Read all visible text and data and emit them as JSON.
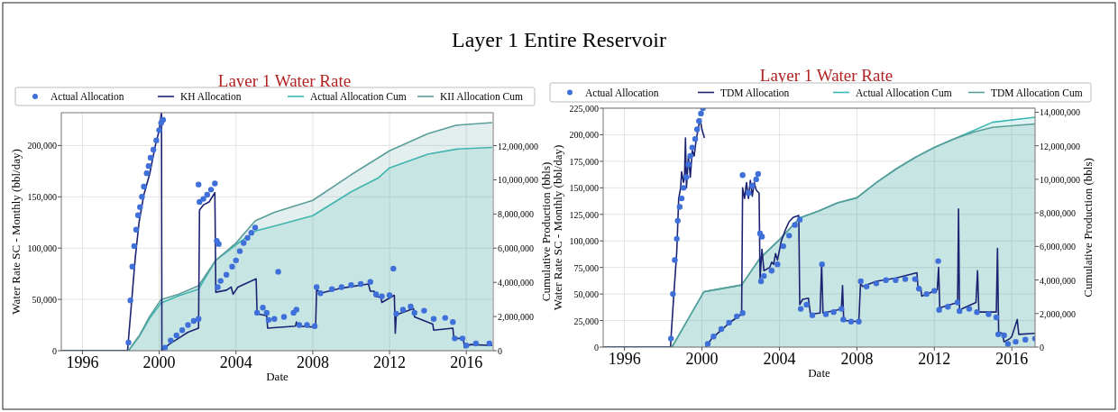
{
  "chart_data": [
    {
      "type": "line",
      "title": "Layer 1 Water Rate",
      "annotations": [
        "Layer 1 Entire Reservoir"
      ],
      "xlabel": "Date",
      "ylabel": "Water Rate SC - Monthly (bbl/day)",
      "y2label": "Cumulative Production (bbls)",
      "xlim": [
        1994.9,
        2017.4
      ],
      "xticks": [
        1996,
        2000,
        2004,
        2008,
        2012,
        2016
      ],
      "ylim": [
        0,
        232000
      ],
      "yticks": [
        0,
        {
          "value": 50000,
          "label": "50,000"
        },
        {
          "value": 100000,
          "label": "100,000"
        },
        {
          "value": 150000,
          "label": "150,000"
        },
        {
          "value": 200000,
          "label": "200,000"
        }
      ],
      "y2lim": [
        0,
        13930000
      ],
      "y2ticks": [
        0,
        {
          "value": 2000000,
          "label": "2,000,000"
        },
        {
          "value": 4000000,
          "label": "4,000,000"
        },
        {
          "value": 6000000,
          "label": "6,000,000"
        },
        {
          "value": 8000000,
          "label": "8,000,000"
        },
        {
          "value": 10000000,
          "label": "10,000,000"
        },
        {
          "value": 12000000,
          "label": "12,000,000"
        }
      ],
      "grid": true,
      "legend": "top",
      "series": [
        {
          "name": "Actual Allocation Cum",
          "type": "area",
          "axis": "y2",
          "color": "#3bb8b4",
          "x": [
            1994.9,
            1998.4,
            1999,
            1999.5,
            2000.1,
            2001,
            2002.05,
            2002.95,
            2004,
            2005,
            2006,
            2008,
            2010,
            2011.4,
            2012,
            2014,
            2015.5,
            2017.35
          ],
          "values": [
            0,
            0,
            900000,
            1900000,
            2800000,
            3200000,
            3600000,
            5300000,
            6200000,
            7000000,
            7300000,
            7900000,
            9300000,
            10100000,
            10700000,
            11500000,
            11800000,
            11900000
          ]
        },
        {
          "name": "KII Allocation Cum",
          "type": "area",
          "axis": "y2",
          "color": "#5a9e9a",
          "x": [
            1994.9,
            1998.4,
            1999,
            1999.5,
            2000.1,
            2001,
            2002.05,
            2002.95,
            2004,
            2005,
            2006,
            2008,
            2010,
            2012,
            2014,
            2015.5,
            2017.35
          ],
          "values": [
            0,
            0,
            950000,
            2000000,
            3000000,
            3300000,
            3800000,
            5300000,
            6300000,
            7600000,
            8100000,
            8800000,
            10300000,
            11700000,
            12700000,
            13200000,
            13350000
          ]
        },
        {
          "name": "KH Allocation",
          "type": "line",
          "color": "#1b2372",
          "x": [
            1994.9,
            1998.35,
            1998.55,
            1998.75,
            1998.95,
            1999.2,
            1999.5,
            1999.8,
            2000.0,
            2000.12,
            2000.14,
            2000.5,
            2001,
            2001.5,
            2002.05,
            2002.1,
            2002.3,
            2002.6,
            2002.9,
            2002.95,
            2003.5,
            2003.75,
            2003.85,
            2004.1,
            2005.05,
            2005.1,
            2005.6,
            2005.65,
            2007.1,
            2007.15,
            2007.2,
            2008.15,
            2008.2,
            2008.4,
            2009.5,
            2010.9,
            2011.0,
            2011.2,
            2011.25,
            2011.55,
            2011.6,
            2012.25,
            2012.3,
            2012.35,
            2013.25,
            2013.3,
            2014.25,
            2014.3,
            2015.3,
            2015.35,
            2015.85,
            2015.9,
            2016.2,
            2017.35
          ],
          "values": [
            0,
            0,
            45000,
            90000,
            125000,
            152000,
            172000,
            200000,
            215000,
            232000,
            0,
            6000,
            12000,
            18000,
            22000,
            137000,
            142000,
            145000,
            154000,
            57000,
            59000,
            62000,
            55000,
            62000,
            70000,
            36000,
            34000,
            22000,
            24000,
            28000,
            24000,
            23000,
            60000,
            56000,
            61000,
            65000,
            58000,
            58000,
            53000,
            52000,
            47000,
            54000,
            17000,
            35000,
            41000,
            33000,
            26000,
            20000,
            22000,
            12000,
            12000,
            3000,
            6000,
            5000
          ]
        },
        {
          "name": "Actual Allocation",
          "type": "scatter",
          "marker": "circle",
          "color": "#3f6fd8",
          "x": [
            1998.4,
            1998.5,
            1998.6,
            1998.7,
            1998.8,
            1998.9,
            1999.0,
            1999.1,
            1999.2,
            1999.35,
            1999.45,
            1999.55,
            1999.7,
            1999.85,
            2000.0,
            2000.1,
            2000.2,
            2000.3,
            2000.6,
            2000.9,
            2001.2,
            2001.5,
            2001.8,
            2002.05,
            2002.05,
            2002.1,
            2002.3,
            2002.5,
            2002.7,
            2002.9,
            2003.0,
            2003.1,
            2003.05,
            2003.2,
            2003.5,
            2003.8,
            2004.0,
            2004.2,
            2004.4,
            2004.6,
            2004.8,
            2005.0,
            2005.1,
            2005.4,
            2005.6,
            2005.7,
            2006.0,
            2006.2,
            2006.5,
            2007.0,
            2007.15,
            2007.3,
            2007.7,
            2008.1,
            2008.2,
            2008.4,
            2009,
            2009.5,
            2010,
            2010.5,
            2011,
            2011.3,
            2011.6,
            2012.0,
            2012.2,
            2012.35,
            2012.7,
            2013.1,
            2013.3,
            2013.8,
            2014.3,
            2014.9,
            2015.3,
            2015.4,
            2015.8,
            2016.0,
            2016.5,
            2017.2
          ],
          "values": [
            8000,
            49000,
            82000,
            102000,
            118000,
            132000,
            140000,
            150000,
            160000,
            173000,
            180000,
            188000,
            196000,
            205000,
            215000,
            222000,
            225000,
            3000,
            10000,
            15000,
            20000,
            25000,
            29000,
            31000,
            162000,
            145000,
            148000,
            152000,
            157000,
            163000,
            107000,
            104000,
            62000,
            68000,
            74000,
            82000,
            88000,
            97000,
            105000,
            110000,
            115000,
            120000,
            37000,
            42000,
            37000,
            30000,
            31000,
            77000,
            33000,
            37000,
            40000,
            25000,
            25000,
            24000,
            62000,
            56000,
            60000,
            62000,
            64000,
            65000,
            67000,
            55000,
            53000,
            54000,
            80000,
            36000,
            40000,
            43000,
            37000,
            39000,
            31000,
            32000,
            28000,
            12000,
            12000,
            5000,
            7000,
            7000
          ]
        }
      ]
    },
    {
      "type": "line",
      "title": "Layer 1 Water Rate",
      "xlabel": "Date",
      "ylabel": "Water Rate SC - Monthly (bbl/day)",
      "y2label": "Cumulative Production (bbls)",
      "xlim": [
        1994.9,
        2017.2
      ],
      "xticks": [
        1996,
        2000,
        2004,
        2008,
        2012,
        2016
      ],
      "ylim": [
        0,
        225000
      ],
      "yticks": [
        0,
        {
          "value": 25000,
          "label": "25,000"
        },
        {
          "value": 50000,
          "label": "50,000"
        },
        {
          "value": 75000,
          "label": "75,000"
        },
        {
          "value": 100000,
          "label": "100,000"
        },
        {
          "value": 125000,
          "label": "125,000"
        },
        {
          "value": 150000,
          "label": "150,000"
        },
        {
          "value": 175000,
          "label": "175,000"
        },
        {
          "value": 200000,
          "label": "200,000"
        },
        {
          "value": 225000,
          "label": "225,000"
        }
      ],
      "y2lim": [
        0,
        14240000
      ],
      "y2ticks": [
        0,
        {
          "value": 2000000,
          "label": "2,000,000"
        },
        {
          "value": 4000000,
          "label": "4,000,000"
        },
        {
          "value": 6000000,
          "label": "6,000,000"
        },
        {
          "value": 8000000,
          "label": "8,000,000"
        },
        {
          "value": 10000000,
          "label": "10,000,000"
        },
        {
          "value": 12000000,
          "label": "12,000,000"
        },
        {
          "value": 14000000,
          "label": "14,000,000"
        }
      ],
      "grid": true,
      "legend": "top",
      "series": [
        {
          "name": "Actual Allocation Cum",
          "type": "area",
          "axis": "y2",
          "color": "#3bb8b4",
          "x": [
            1994.9,
            1998.45,
            1999,
            2000.1,
            2002.05,
            2003,
            2004,
            2005.05,
            2006,
            2007,
            2008,
            2009,
            2010,
            2011,
            2012,
            2013,
            2014,
            2015,
            2017.2
          ],
          "values": [
            0,
            0,
            1100000,
            3300000,
            3700000,
            5300000,
            6400000,
            7700000,
            8100000,
            8600000,
            8900000,
            9800000,
            10600000,
            11300000,
            11900000,
            12400000,
            12900000,
            13400000,
            13700000
          ]
        },
        {
          "name": "TDM Allocation Cum",
          "type": "area",
          "axis": "y2",
          "color": "#5a9e9a",
          "x": [
            1994.9,
            1998.45,
            1999,
            2000.1,
            2002.05,
            2003,
            2004,
            2005.05,
            2006,
            2007,
            2008,
            2009,
            2010,
            2011,
            2012,
            2013,
            2014,
            2015,
            2017.2
          ],
          "values": [
            0,
            0,
            1100000,
            3300000,
            3700000,
            5300000,
            6400000,
            7700000,
            8100000,
            8600000,
            8900000,
            9800000,
            10600000,
            11300000,
            11900000,
            12400000,
            12800000,
            13100000,
            13300000
          ]
        },
        {
          "name": "TDM Allocation",
          "type": "line",
          "color": "#1b2372",
          "x": [
            1994.9,
            1998.38,
            1998.4,
            1998.55,
            1998.7,
            1998.8,
            1998.9,
            1998.95,
            1999.05,
            1999.1,
            1999.15,
            1999.2,
            1999.3,
            1999.4,
            1999.5,
            1999.6,
            1999.7,
            1999.8,
            1999.9,
            2000.0,
            2000.13,
            2000.16,
            2000.2,
            2000.5,
            2001,
            2001.5,
            2002.05,
            2002.1,
            2002.2,
            2002.3,
            2002.4,
            2002.5,
            2002.6,
            2002.7,
            2002.8,
            2002.95,
            2003.0,
            2003.1,
            2003.2,
            2003.5,
            2003.6,
            2003.7,
            2003.8,
            2003.9,
            2004.1,
            2004.3,
            2004.5,
            2004.7,
            2005.0,
            2005.05,
            2005.2,
            2005.5,
            2005.6,
            2006.1,
            2006.18,
            2006.25,
            2007.0,
            2007.2,
            2007.26,
            2007.32,
            2008.1,
            2008.19,
            2008.3,
            2009,
            2010,
            2011.1,
            2011.16,
            2011.3,
            2011.35,
            2012.15,
            2012.22,
            2012.28,
            2013.2,
            2013.25,
            2013.3,
            2014.15,
            2014.23,
            2014.3,
            2015.2,
            2015.26,
            2015.32,
            2015.5,
            2015.6,
            2015.9,
            2016.0,
            2016.28,
            2016.36,
            2017.2
          ],
          "values": [
            0,
            0,
            8000,
            50000,
            90000,
            140000,
            150000,
            165000,
            155000,
            160000,
            197000,
            150000,
            180000,
            160000,
            185000,
            180000,
            195000,
            205000,
            215000,
            205000,
            197000,
            null,
            0,
            8000,
            16000,
            24000,
            31000,
            150000,
            140000,
            155000,
            140000,
            157000,
            142000,
            155000,
            148000,
            145000,
            65000,
            92000,
            72000,
            75000,
            80000,
            78000,
            88000,
            82000,
            100000,
            110000,
            118000,
            122000,
            124000,
            40000,
            45000,
            46000,
            31000,
            32000,
            78000,
            32000,
            35000,
            36000,
            58000,
            25000,
            24000,
            60000,
            57000,
            62000,
            65000,
            70000,
            55000,
            56000,
            48000,
            54000,
            75000,
            37000,
            42000,
            130000,
            35000,
            42000,
            72000,
            33000,
            33000,
            93000,
            14000,
            13000,
            5000,
            8000,
            10000,
            26000,
            12000,
            13000
          ]
        },
        {
          "name": "Actual Allocation",
          "type": "scatter",
          "marker": "circle",
          "color": "#3f6fd8",
          "x": [
            1998.4,
            1998.5,
            1998.6,
            1998.7,
            1998.75,
            1998.85,
            1998.95,
            1999.05,
            1999.2,
            1999.3,
            1999.4,
            1999.5,
            1999.65,
            1999.75,
            1999.85,
            1999.95,
            2000.05,
            2000.3,
            2000.6,
            2001,
            2001.4,
            2001.8,
            2002.1,
            2002.1,
            2002.4,
            2002.6,
            2002.8,
            2002.9,
            2003.0,
            2003.1,
            2003.05,
            2003.2,
            2003.6,
            2003.9,
            2004.2,
            2004.5,
            2004.8,
            2005.05,
            2005.1,
            2005.4,
            2005.7,
            2006.2,
            2006.4,
            2006.8,
            2007.2,
            2007.3,
            2007.7,
            2008.1,
            2008.2,
            2008.5,
            2009,
            2009.5,
            2010,
            2010.5,
            2011,
            2011.2,
            2011.6,
            2012.0,
            2012.2,
            2012.25,
            2012.7,
            2013.2,
            2013.3,
            2013.8,
            2014.2,
            2014.8,
            2015.2,
            2015.3,
            2015.6,
            2015.8,
            2016.2,
            2016.7,
            2017.2
          ],
          "values": [
            8000,
            50000,
            82000,
            102000,
            119000,
            132000,
            140000,
            150000,
            160000,
            172000,
            180000,
            188000,
            196000,
            205000,
            213000,
            220000,
            225000,
            3000,
            10000,
            17000,
            23000,
            29000,
            32000,
            162000,
            145000,
            152000,
            158000,
            163000,
            107000,
            104000,
            62000,
            67000,
            72000,
            78000,
            95000,
            105000,
            115000,
            120000,
            36000,
            40000,
            30000,
            78000,
            31000,
            33000,
            36000,
            26000,
            24000,
            24000,
            62000,
            57000,
            60000,
            63000,
            63000,
            64000,
            64000,
            55000,
            50000,
            53000,
            81000,
            35000,
            38000,
            42000,
            34000,
            36000,
            33000,
            31000,
            28000,
            12000,
            11000,
            3000,
            5000,
            7000,
            8000
          ]
        }
      ]
    }
  ]
}
